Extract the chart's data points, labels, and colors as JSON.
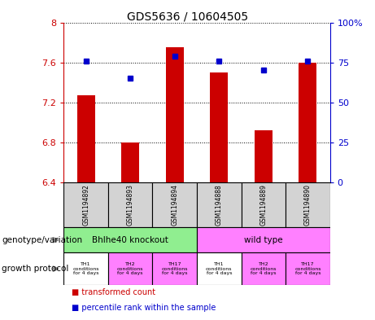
{
  "title": "GDS5636 / 10604505",
  "samples": [
    "GSM1194892",
    "GSM1194893",
    "GSM1194894",
    "GSM1194888",
    "GSM1194889",
    "GSM1194890"
  ],
  "bar_values": [
    7.27,
    6.8,
    7.75,
    7.5,
    6.92,
    7.6
  ],
  "percentile_values": [
    76,
    65,
    79,
    76,
    70,
    76
  ],
  "bar_color": "#cc0000",
  "dot_color": "#0000cc",
  "ylim_left": [
    6.4,
    8.0
  ],
  "ylim_right": [
    0,
    100
  ],
  "yticks_left": [
    6.4,
    6.8,
    7.2,
    7.6,
    8.0
  ],
  "yticks_right": [
    0,
    25,
    50,
    75,
    100
  ],
  "ytick_labels_left": [
    "6.4",
    "6.8",
    "7.2",
    "7.6",
    "8"
  ],
  "ytick_labels_right": [
    "0",
    "25",
    "50",
    "75",
    "100%"
  ],
  "genotype_groups": [
    {
      "label": "Bhlhe40 knockout",
      "color": "#90ee90",
      "span": [
        0,
        3
      ]
    },
    {
      "label": "wild type",
      "color": "#ff80ff",
      "span": [
        3,
        6
      ]
    }
  ],
  "growth_protocol_colors": [
    "#ffffff",
    "#ff80ff",
    "#ff80ff",
    "#ffffff",
    "#ff80ff",
    "#ff80ff"
  ],
  "growth_protocol_texts": [
    "TH1\nconditions\nfor 4 days",
    "TH2\nconditions\nfor 4 days",
    "TH17\nconditions\nfor 4 days",
    "TH1\nconditions\nfor 4 days",
    "TH2\nconditions\nfor 4 days",
    "TH17\nconditions\nfor 4 days"
  ],
  "legend_red_label": "transformed count",
  "legend_blue_label": "percentile rank within the sample",
  "label_genotype": "genotype/variation",
  "label_protocol": "growth protocol",
  "bar_bottom": 6.4,
  "sample_box_color": "#d3d3d3",
  "fig_width": 4.61,
  "fig_height": 3.93,
  "dpi": 100
}
